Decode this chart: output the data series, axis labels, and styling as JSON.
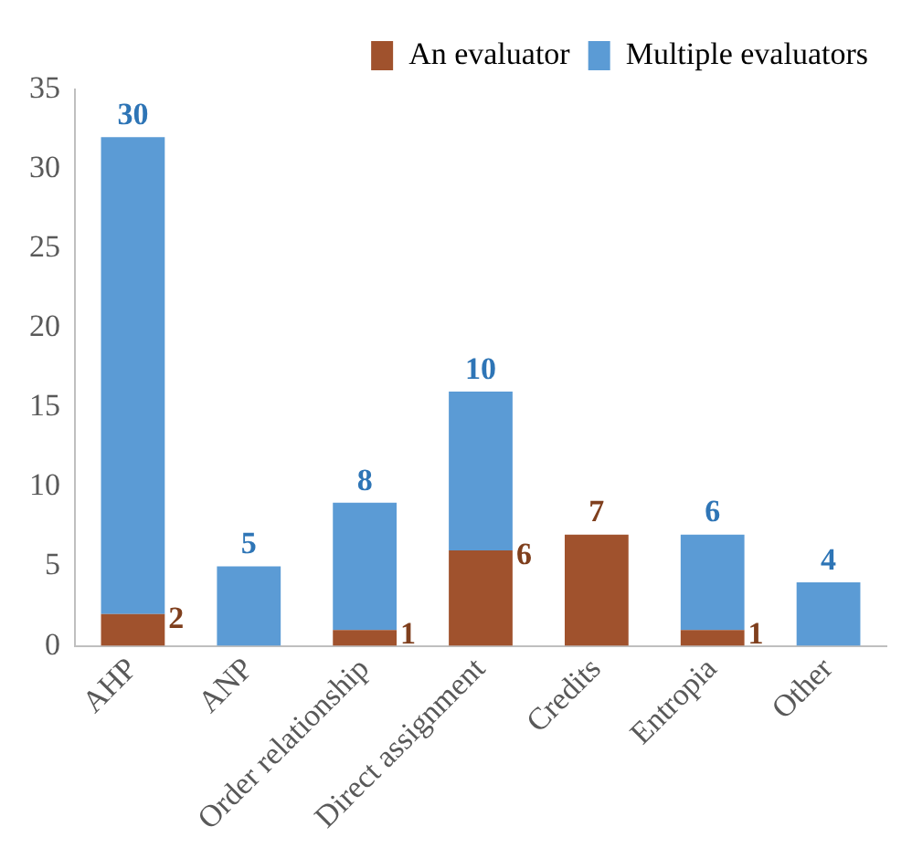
{
  "chart_data": {
    "type": "bar",
    "stacked": true,
    "categories": [
      "AHP",
      "ANP",
      "Order relationship",
      "Direct assignment",
      "Credits",
      "Entropia",
      "Other"
    ],
    "series": [
      {
        "name": "An evaluator",
        "color": "#a0522d",
        "values": [
          2,
          0,
          1,
          6,
          7,
          1,
          0
        ],
        "value_labels": [
          "2",
          null,
          "1",
          "6",
          "7",
          "1",
          null
        ]
      },
      {
        "name": "Multiple evaluators",
        "color": "#5b9bd5",
        "values": [
          30,
          5,
          8,
          10,
          0,
          6,
          4
        ],
        "value_labels": [
          "30",
          "5",
          "8",
          "10",
          null,
          "6",
          "4"
        ]
      }
    ],
    "ylim": [
      0,
      35
    ],
    "yticks": [
      0,
      5,
      10,
      15,
      20,
      25,
      30,
      35
    ],
    "grid": false,
    "legend": "top right"
  }
}
